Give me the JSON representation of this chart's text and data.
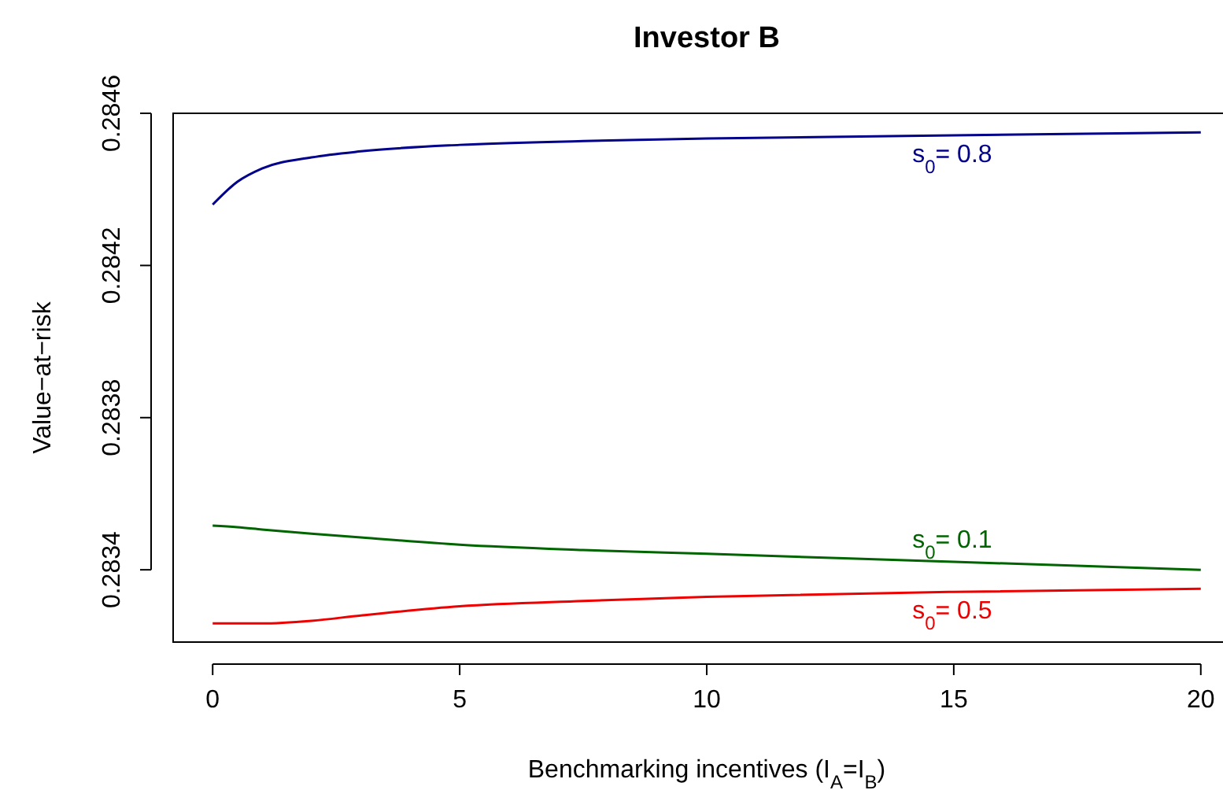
{
  "chart_data": {
    "type": "line",
    "title": "Investor B",
    "xlabel": "Benchmarking incentives (I$_{A}$=I$_{B}$)",
    "ylabel": "Value−at−risk",
    "x": [
      0,
      0.5,
      1,
      2,
      3,
      5,
      7.5,
      10,
      15,
      20
    ],
    "series": [
      {
        "name": "s$_{0}$= 0.8",
        "color": "#00008b",
        "values": [
          0.28436,
          0.28442,
          0.284455,
          0.284484,
          0.2845,
          0.284517,
          0.284527,
          0.284534,
          0.284542,
          0.28455
        ]
      },
      {
        "name": "s$_{0}$= 0.1",
        "color": "#006400",
        "values": [
          0.283516,
          0.283512,
          0.283506,
          0.283495,
          0.283485,
          0.283466,
          0.283452,
          0.283442,
          0.283421,
          0.2834
        ]
      },
      {
        "name": "s$_{0}$= 0.5",
        "color": "#ee0000",
        "values": [
          0.283259,
          0.283259,
          0.283259,
          0.283266,
          0.28328,
          0.283304,
          0.283318,
          0.283329,
          0.283342,
          0.28335
        ]
      }
    ],
    "xlim": [
      -0.8,
      20.8
    ],
    "ylim": [
      0.28321,
      0.2846
    ],
    "xticks": [
      0,
      5,
      10,
      15,
      20
    ],
    "yticks": [
      0.2834,
      0.2838,
      0.2842,
      0.2846
    ],
    "grid": false,
    "marker": "none",
    "line_style": "solid"
  }
}
